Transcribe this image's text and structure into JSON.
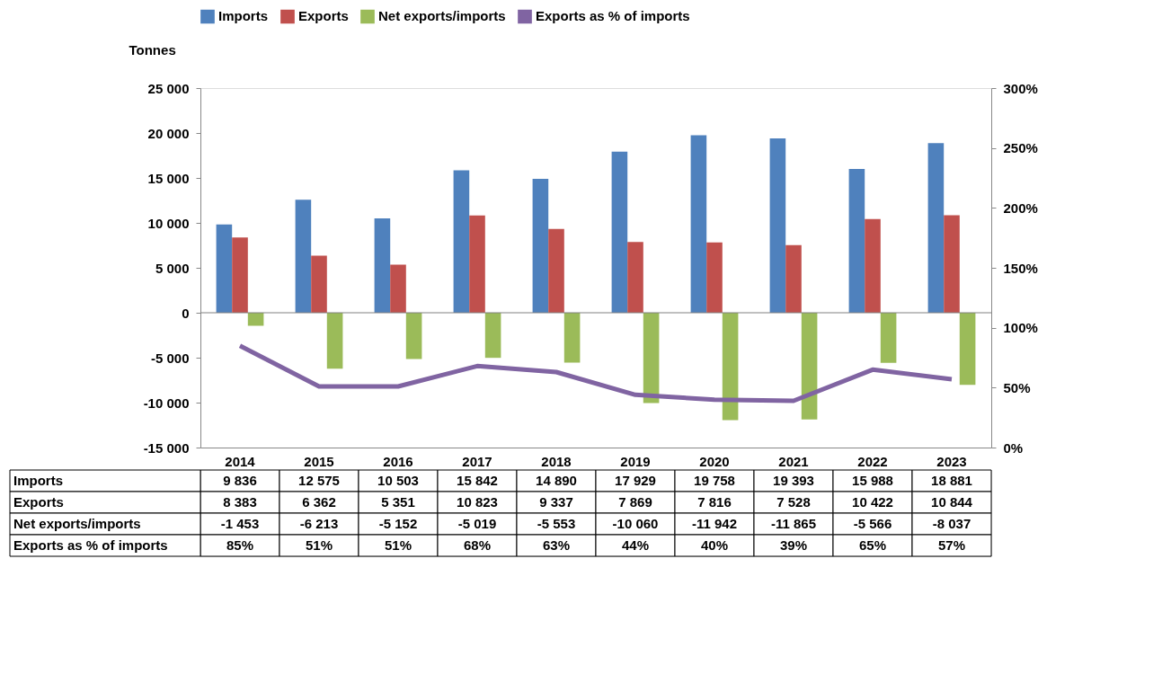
{
  "chart_data": {
    "type": "bar",
    "categories": [
      "2014",
      "2015",
      "2016",
      "2017",
      "2018",
      "2019",
      "2020",
      "2021",
      "2022",
      "2023"
    ],
    "ylabel": "Tonnes",
    "series": [
      {
        "name": "Imports",
        "color": "#4f81bd",
        "values": [
          9836,
          12575,
          10503,
          15842,
          14890,
          17929,
          19758,
          19393,
          15988,
          18881
        ],
        "value_labels": [
          "9 836",
          "12 575",
          "10 503",
          "15 842",
          "14 890",
          "17 929",
          "19 758",
          "19 393",
          "15 988",
          "18 881"
        ]
      },
      {
        "name": "Exports",
        "color": "#c0504d",
        "values": [
          8383,
          6362,
          5351,
          10823,
          9337,
          7869,
          7816,
          7528,
          10422,
          10844
        ],
        "value_labels": [
          "8 383",
          "6 362",
          "5 351",
          "10 823",
          "9 337",
          "7 869",
          "7 816",
          "7 528",
          "10 422",
          "10 844"
        ]
      },
      {
        "name": "Net exports/imports",
        "color": "#9bbb59",
        "values": [
          -1453,
          -6213,
          -5152,
          -5019,
          -5553,
          -10060,
          -11942,
          -11865,
          -5566,
          -8037
        ],
        "value_labels": [
          "-1 453",
          "-6 213",
          "-5 152",
          "-5 019",
          "-5 553",
          "-10 060",
          "-11 942",
          "-11 865",
          "-5 566",
          "-8 037"
        ]
      },
      {
        "name": "Exports as % of imports",
        "color": "#8064a2",
        "type": "line",
        "axis": "y2",
        "values": [
          85,
          51,
          51,
          68,
          63,
          44,
          40,
          39,
          65,
          57
        ],
        "value_labels": [
          "85%",
          "51%",
          "51%",
          "68%",
          "63%",
          "44%",
          "40%",
          "39%",
          "65%",
          "57%"
        ]
      }
    ],
    "ylim": [
      -15000,
      25000
    ],
    "yticks": [
      {
        "value": -15000,
        "label": "-15 000"
      },
      {
        "value": -10000,
        "label": "-10 000"
      },
      {
        "value": -5000,
        "label": "-5 000"
      },
      0,
      {
        "value": 5000,
        "label": "5 000"
      },
      {
        "value": 10000,
        "label": "10 000"
      },
      {
        "value": 15000,
        "label": "15 000"
      },
      {
        "value": 20000,
        "label": "20 000"
      },
      {
        "value": 25000,
        "label": "25 000"
      }
    ],
    "y2lim": [
      0,
      300
    ],
    "y2ticks": [
      {
        "value": 0,
        "label": "0%"
      },
      {
        "value": 50,
        "label": "50%"
      },
      {
        "value": 100,
        "label": "100%"
      },
      {
        "value": 150,
        "label": "150%"
      },
      {
        "value": 200,
        "label": "200%"
      },
      {
        "value": 250,
        "label": "250%"
      },
      {
        "value": 300,
        "label": "300%"
      }
    ],
    "ref_lines": [
      {
        "axis": "y",
        "value": 0,
        "color": "#808080"
      }
    ],
    "grid": false,
    "legend": "top",
    "marker": "none",
    "line_style": "solid"
  }
}
